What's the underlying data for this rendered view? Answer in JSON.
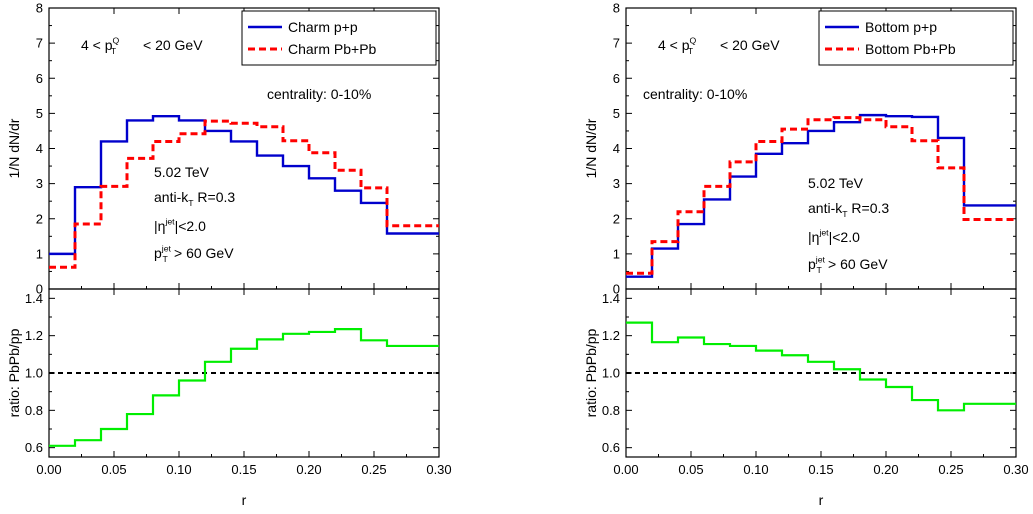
{
  "figure": {
    "x_axis_label": "r"
  },
  "chart_data": [
    {
      "type": "line",
      "panel": "charm",
      "title": "",
      "xlabel": "r",
      "ylabel": "1/N dN/dr",
      "xlim": [
        0,
        0.3
      ],
      "ylim": [
        0,
        8
      ],
      "xticks": [
        0.0,
        0.05,
        0.1,
        0.15,
        0.2,
        0.25,
        0.3
      ],
      "xtick_labels": [
        "0.00",
        "0.05",
        "0.10",
        "0.15",
        "0.20",
        "0.25",
        "0.30"
      ],
      "yticks": [
        0,
        1,
        2,
        3,
        4,
        5,
        6,
        7,
        8
      ],
      "ytick_labels": [
        "0",
        "1",
        "2",
        "3",
        "4",
        "5",
        "6",
        "7",
        "8"
      ],
      "bin_edges": [
        0,
        0.02,
        0.04,
        0.06,
        0.08,
        0.1,
        0.12,
        0.14,
        0.16,
        0.18,
        0.2,
        0.22,
        0.24,
        0.26,
        0.3
      ],
      "series": [
        {
          "name": "Charm p+p",
          "color": "#0000cc",
          "style": "solid",
          "values": [
            1.0,
            2.9,
            4.2,
            4.8,
            4.92,
            4.8,
            4.5,
            4.2,
            3.8,
            3.5,
            3.15,
            2.8,
            2.45,
            1.58
          ]
        },
        {
          "name": "Charm Pb+Pb",
          "color": "#ff0000",
          "style": "dashed",
          "values": [
            0.62,
            1.85,
            2.92,
            3.72,
            4.2,
            4.42,
            4.78,
            4.72,
            4.62,
            4.22,
            3.88,
            3.38,
            2.88,
            1.8
          ]
        }
      ],
      "legend_position": "top-right",
      "annotations": {
        "pt_range": "4 < p",
        "pt_range_sub": "T",
        "pt_range_sup": "Q",
        "pt_range_rest": " < 20 GeV",
        "centrality": "centrality: 0-10%",
        "energy": "5.02 TeV",
        "algo": "anti-k",
        "algo_sub": "T",
        "algo_rest": " R=0.3",
        "eta_pre": "|η",
        "eta_sup": "jet",
        "eta_rest": "|<2.0",
        "ptjet_pre": "p",
        "ptjet_sub": "T",
        "ptjet_sup": "jet",
        "ptjet_rest": " > 60 GeV"
      },
      "ratio": {
        "ylabel": "ratio: PbPb/pp",
        "ylim": [
          0.55,
          1.45
        ],
        "yticks": [
          0.6,
          0.8,
          1.0,
          1.2,
          1.4
        ],
        "ytick_labels": [
          "0.6",
          "0.8",
          "1.0",
          "1.2",
          "1.4"
        ],
        "reference": 1.0,
        "color": "#00ee00",
        "values": [
          0.61,
          0.64,
          0.7,
          0.78,
          0.88,
          0.96,
          1.06,
          1.13,
          1.18,
          1.21,
          1.22,
          1.235,
          1.175,
          1.145
        ]
      }
    },
    {
      "type": "line",
      "panel": "bottom",
      "title": "",
      "xlabel": "r",
      "ylabel": "1/N dN/dr",
      "xlim": [
        0,
        0.3
      ],
      "ylim": [
        0,
        8
      ],
      "xticks": [
        0.0,
        0.05,
        0.1,
        0.15,
        0.2,
        0.25,
        0.3
      ],
      "xtick_labels": [
        "0.00",
        "0.05",
        "0.10",
        "0.15",
        "0.20",
        "0.25",
        "0.30"
      ],
      "yticks": [
        0,
        1,
        2,
        3,
        4,
        5,
        6,
        7,
        8
      ],
      "ytick_labels": [
        "0",
        "1",
        "2",
        "3",
        "4",
        "5",
        "6",
        "7",
        "8"
      ],
      "bin_edges": [
        0,
        0.02,
        0.04,
        0.06,
        0.08,
        0.1,
        0.12,
        0.14,
        0.16,
        0.18,
        0.2,
        0.22,
        0.24,
        0.26,
        0.3
      ],
      "series": [
        {
          "name": "Bottom p+p",
          "color": "#0000cc",
          "style": "solid",
          "values": [
            0.35,
            1.15,
            1.85,
            2.55,
            3.2,
            3.85,
            4.15,
            4.5,
            4.75,
            4.95,
            4.92,
            4.9,
            4.3,
            2.38
          ]
        },
        {
          "name": "Bottom Pb+Pb",
          "color": "#ff0000",
          "style": "dashed",
          "values": [
            0.45,
            1.35,
            2.2,
            2.92,
            3.62,
            4.2,
            4.55,
            4.82,
            4.88,
            4.82,
            4.62,
            4.22,
            3.45,
            1.98
          ]
        }
      ],
      "legend_position": "top-right",
      "annotations": {
        "pt_range": "4 < p",
        "pt_range_sub": "T",
        "pt_range_sup": "Q",
        "pt_range_rest": " < 20 GeV",
        "centrality": "centrality: 0-10%",
        "energy": "5.02 TeV",
        "algo": "anti-k",
        "algo_sub": "T",
        "algo_rest": " R=0.3",
        "eta_pre": "|η",
        "eta_sup": "jet",
        "eta_rest": "|<2.0",
        "ptjet_pre": "p",
        "ptjet_sub": "T",
        "ptjet_sup": "jet",
        "ptjet_rest": " > 60 GeV"
      },
      "ratio": {
        "ylabel": "ratio: PbPb/pp",
        "ylim": [
          0.55,
          1.45
        ],
        "yticks": [
          0.6,
          0.8,
          1.0,
          1.2,
          1.4
        ],
        "ytick_labels": [
          "0.6",
          "0.8",
          "1.0",
          "1.2",
          "1.4"
        ],
        "reference": 1.0,
        "color": "#00ee00",
        "values": [
          1.27,
          1.165,
          1.19,
          1.155,
          1.145,
          1.12,
          1.095,
          1.06,
          1.02,
          0.965,
          0.925,
          0.855,
          0.8,
          0.835
        ]
      }
    }
  ]
}
